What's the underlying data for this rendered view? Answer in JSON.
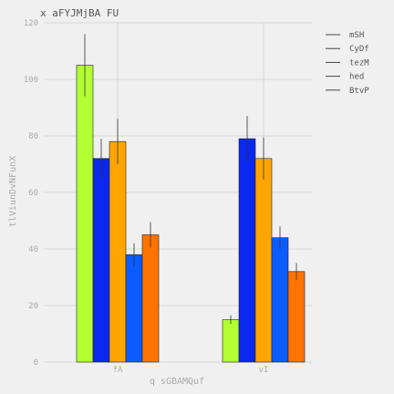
{
  "chart_data": {
    "type": "bar",
    "title": "x aFYJMjBA FU",
    "xlabel": "q sGBAMQuf",
    "ylabel": "tlViunDvNFunX",
    "categories": [
      "fA",
      "vI"
    ],
    "ylim": [
      0,
      120
    ],
    "yticks": [
      0,
      20,
      40,
      60,
      80,
      100,
      120
    ],
    "grid": true,
    "legend_position": "top-right",
    "series": [
      {
        "name": "mSH",
        "color": "#b3ff33",
        "values": [
          105,
          15
        ],
        "errors": [
          11,
          1.5
        ]
      },
      {
        "name": "CyDf",
        "color": "#0a28ef",
        "values": [
          72,
          79
        ],
        "errors": [
          7,
          8
        ]
      },
      {
        "name": "tezM",
        "color": "#ffa500",
        "values": [
          78,
          72
        ],
        "errors": [
          8,
          7.5
        ]
      },
      {
        "name": "hed",
        "color": "#0a5cff",
        "values": [
          38,
          44
        ],
        "errors": [
          4,
          4
        ]
      },
      {
        "name": "BtvP",
        "color": "#ff7300",
        "values": [
          45,
          32
        ],
        "errors": [
          4.5,
          3
        ]
      }
    ]
  }
}
